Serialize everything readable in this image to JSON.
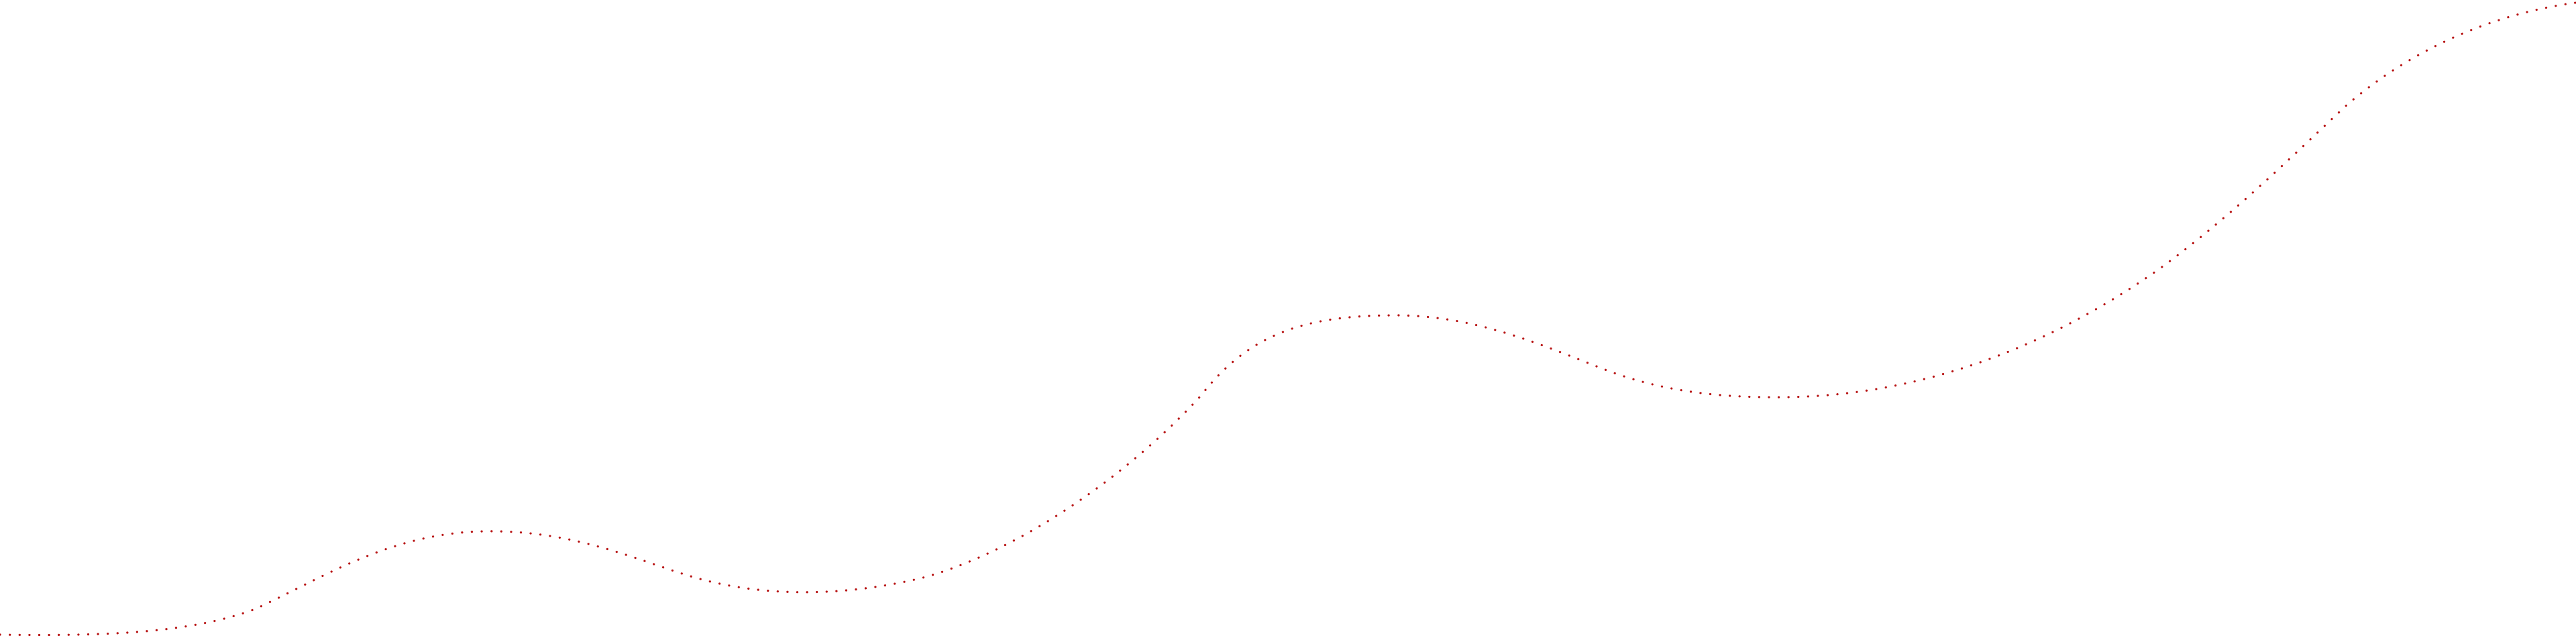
{
  "curve": {
    "color": "#b81414",
    "style": "dotted"
  }
}
